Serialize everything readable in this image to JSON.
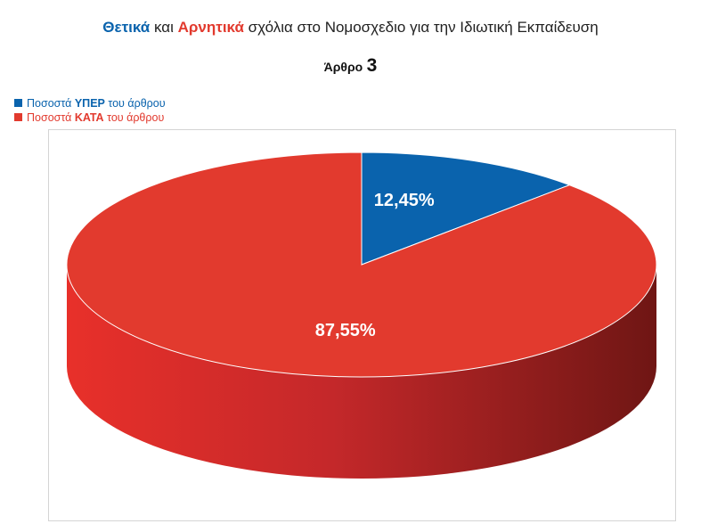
{
  "title": {
    "positive_word": "Θετικά",
    "connector": " και ",
    "negative_word": "Αρνητικά",
    "rest": " σχόλια στο Νομοσχεδιο για την Ιδιωτική Εκπαίδευση"
  },
  "subtitle": {
    "word": "Άρθρο",
    "number": "3"
  },
  "legend": [
    {
      "prefix": "Ποσοστά ",
      "highlight": "ΥΠΕΡ",
      "suffix": " του άρθρου",
      "color": "#0a63ad"
    },
    {
      "prefix": "Ποσοστά ",
      "highlight": "ΚΑΤΑ",
      "suffix": " του άρθρου",
      "color": "#e23a2e"
    }
  ],
  "chart_data": {
    "type": "pie",
    "title": "Θετικά και Αρνητικά σχόλια στο Νομοσχεδιο για την Ιδιωτική Εκπαίδευση",
    "subtitle": "Άρθρο 3",
    "categories": [
      "Ποσοστά ΥΠΕΡ του άρθρου",
      "Ποσοστά ΚΑΤΑ του άρθρου"
    ],
    "values": [
      12.45,
      87.55
    ],
    "labels": [
      "12,45%",
      "87,55%"
    ],
    "colors": [
      "#0a63ad",
      "#e23a2e"
    ],
    "legend_position": "top-left",
    "style": "3d"
  }
}
